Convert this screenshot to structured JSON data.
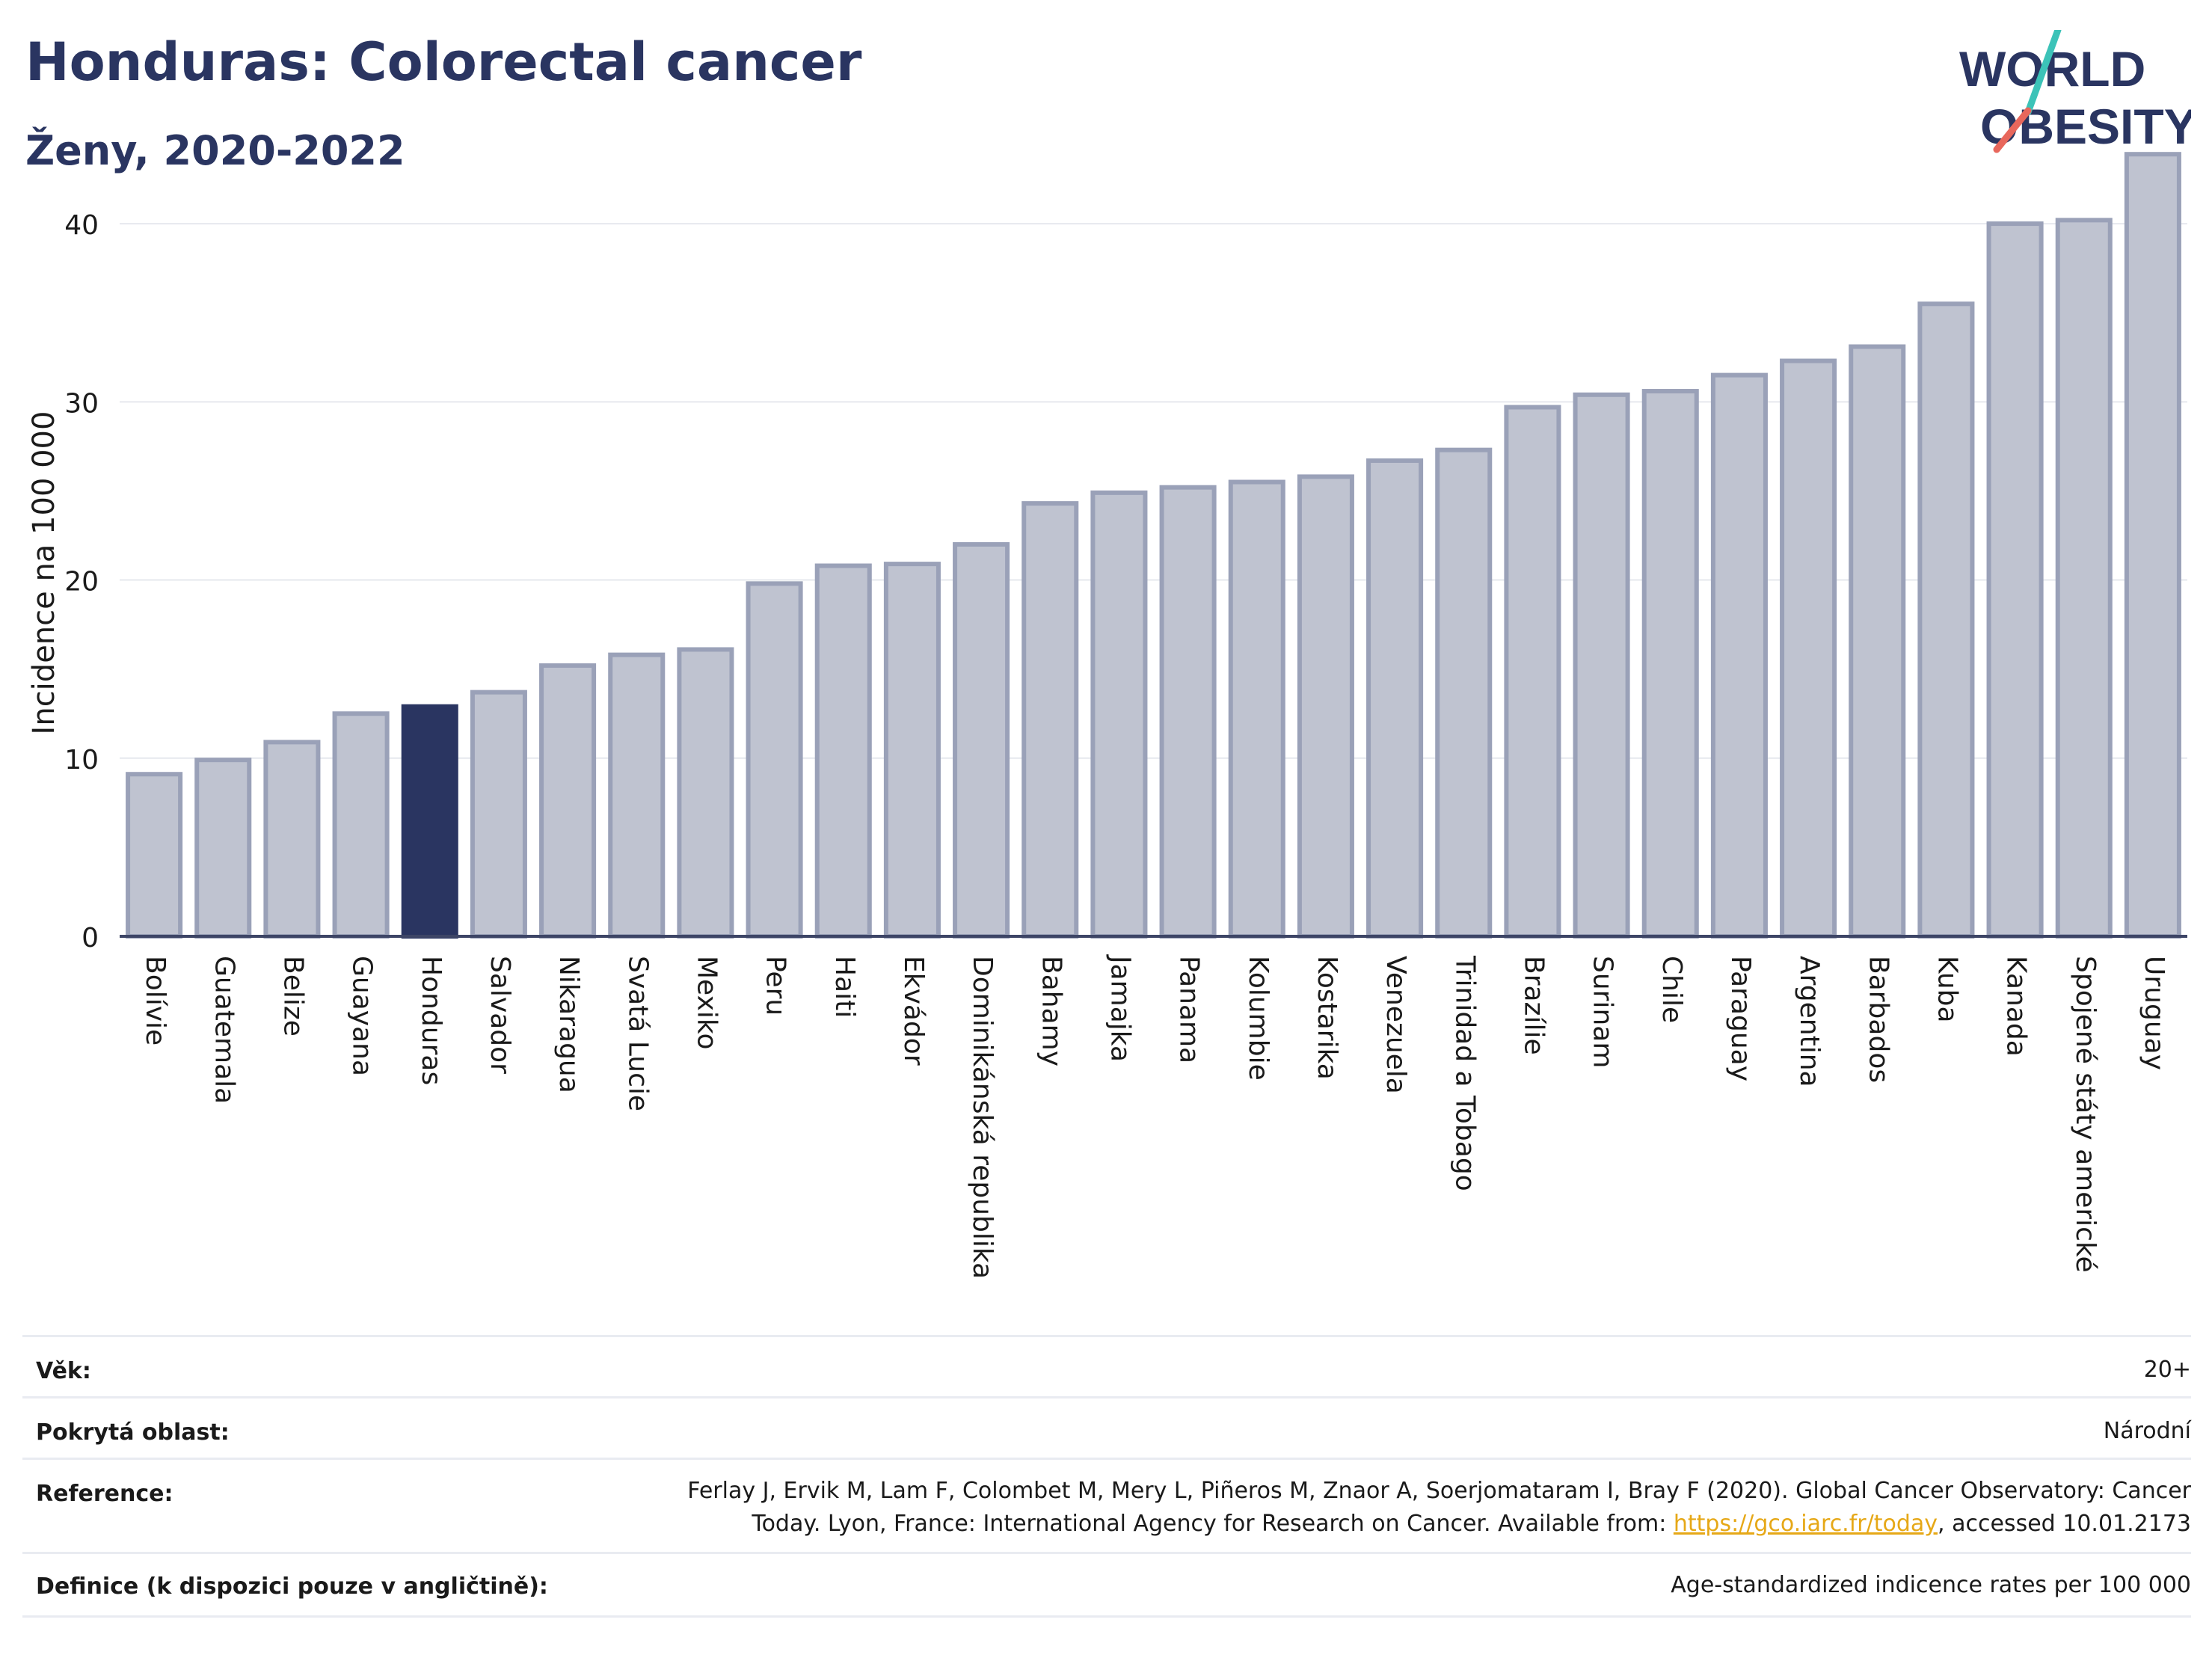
{
  "header": {
    "title": "Honduras: Colorectal cancer",
    "subtitle": "Ženy, 2020-2022"
  },
  "logo": {
    "line1": "WORLD",
    "line2": "OBESITY"
  },
  "chart_data": {
    "type": "bar",
    "ylabel": "Incidence na 100 000",
    "ylim": [
      0,
      45
    ],
    "yticks": [
      0,
      10,
      20,
      30,
      40
    ],
    "grid": true,
    "highlight": "Honduras",
    "colors": {
      "bar": "#bfc3d0",
      "bar_stroke": "#9aa1b8",
      "highlight": "#2a3561",
      "grid": "#e6e8ee"
    },
    "categories": [
      "Bolívie",
      "Guatemala",
      "Belize",
      "Guayana",
      "Honduras",
      "Salvador",
      "Nikaragua",
      "Svatá Lucie",
      "Mexiko",
      "Peru",
      "Haiti",
      "Ekvádor",
      "Dominikánská republika",
      "Bahamy",
      "Jamajka",
      "Panama",
      "Kolumbie",
      "Kostarika",
      "Venezuela",
      "Trinidad a Tobago",
      "Brazílie",
      "Surinam",
      "Chile",
      "Paraguay",
      "Argentina",
      "Barbados",
      "Kuba",
      "Kanada",
      "Spojené státy americké",
      "Uruguay"
    ],
    "values": [
      9.1,
      9.9,
      10.9,
      12.5,
      12.9,
      13.7,
      15.2,
      15.8,
      16.1,
      19.8,
      20.8,
      20.9,
      22.0,
      24.3,
      24.9,
      25.2,
      25.5,
      25.8,
      26.7,
      27.3,
      29.7,
      30.4,
      30.6,
      31.5,
      32.3,
      33.1,
      35.5,
      40.0,
      40.2,
      43.9
    ]
  },
  "info": {
    "age_label": "Věk:",
    "age_value": "20+",
    "area_label": "Pokrytá oblast:",
    "area_value": "Národní",
    "reference_label": "Reference:",
    "reference_line1": "Ferlay J, Ervik M, Lam F, Colombet M, Mery L, Piñeros M, Znaor A, Soerjomataram I, Bray F (2020). Global Cancer Observatory: Cancer",
    "reference_line2_pre": "Today. Lyon, France: International Agency for Research on Cancer. Available from: ",
    "reference_link": "https://gco.iarc.fr/today",
    "reference_line2_post": ", accessed 10.01.2173",
    "definition_label": "Definice (k dispozici pouze v angličtině):",
    "definition_value": "Age-standardized indicence rates per 100 000"
  }
}
